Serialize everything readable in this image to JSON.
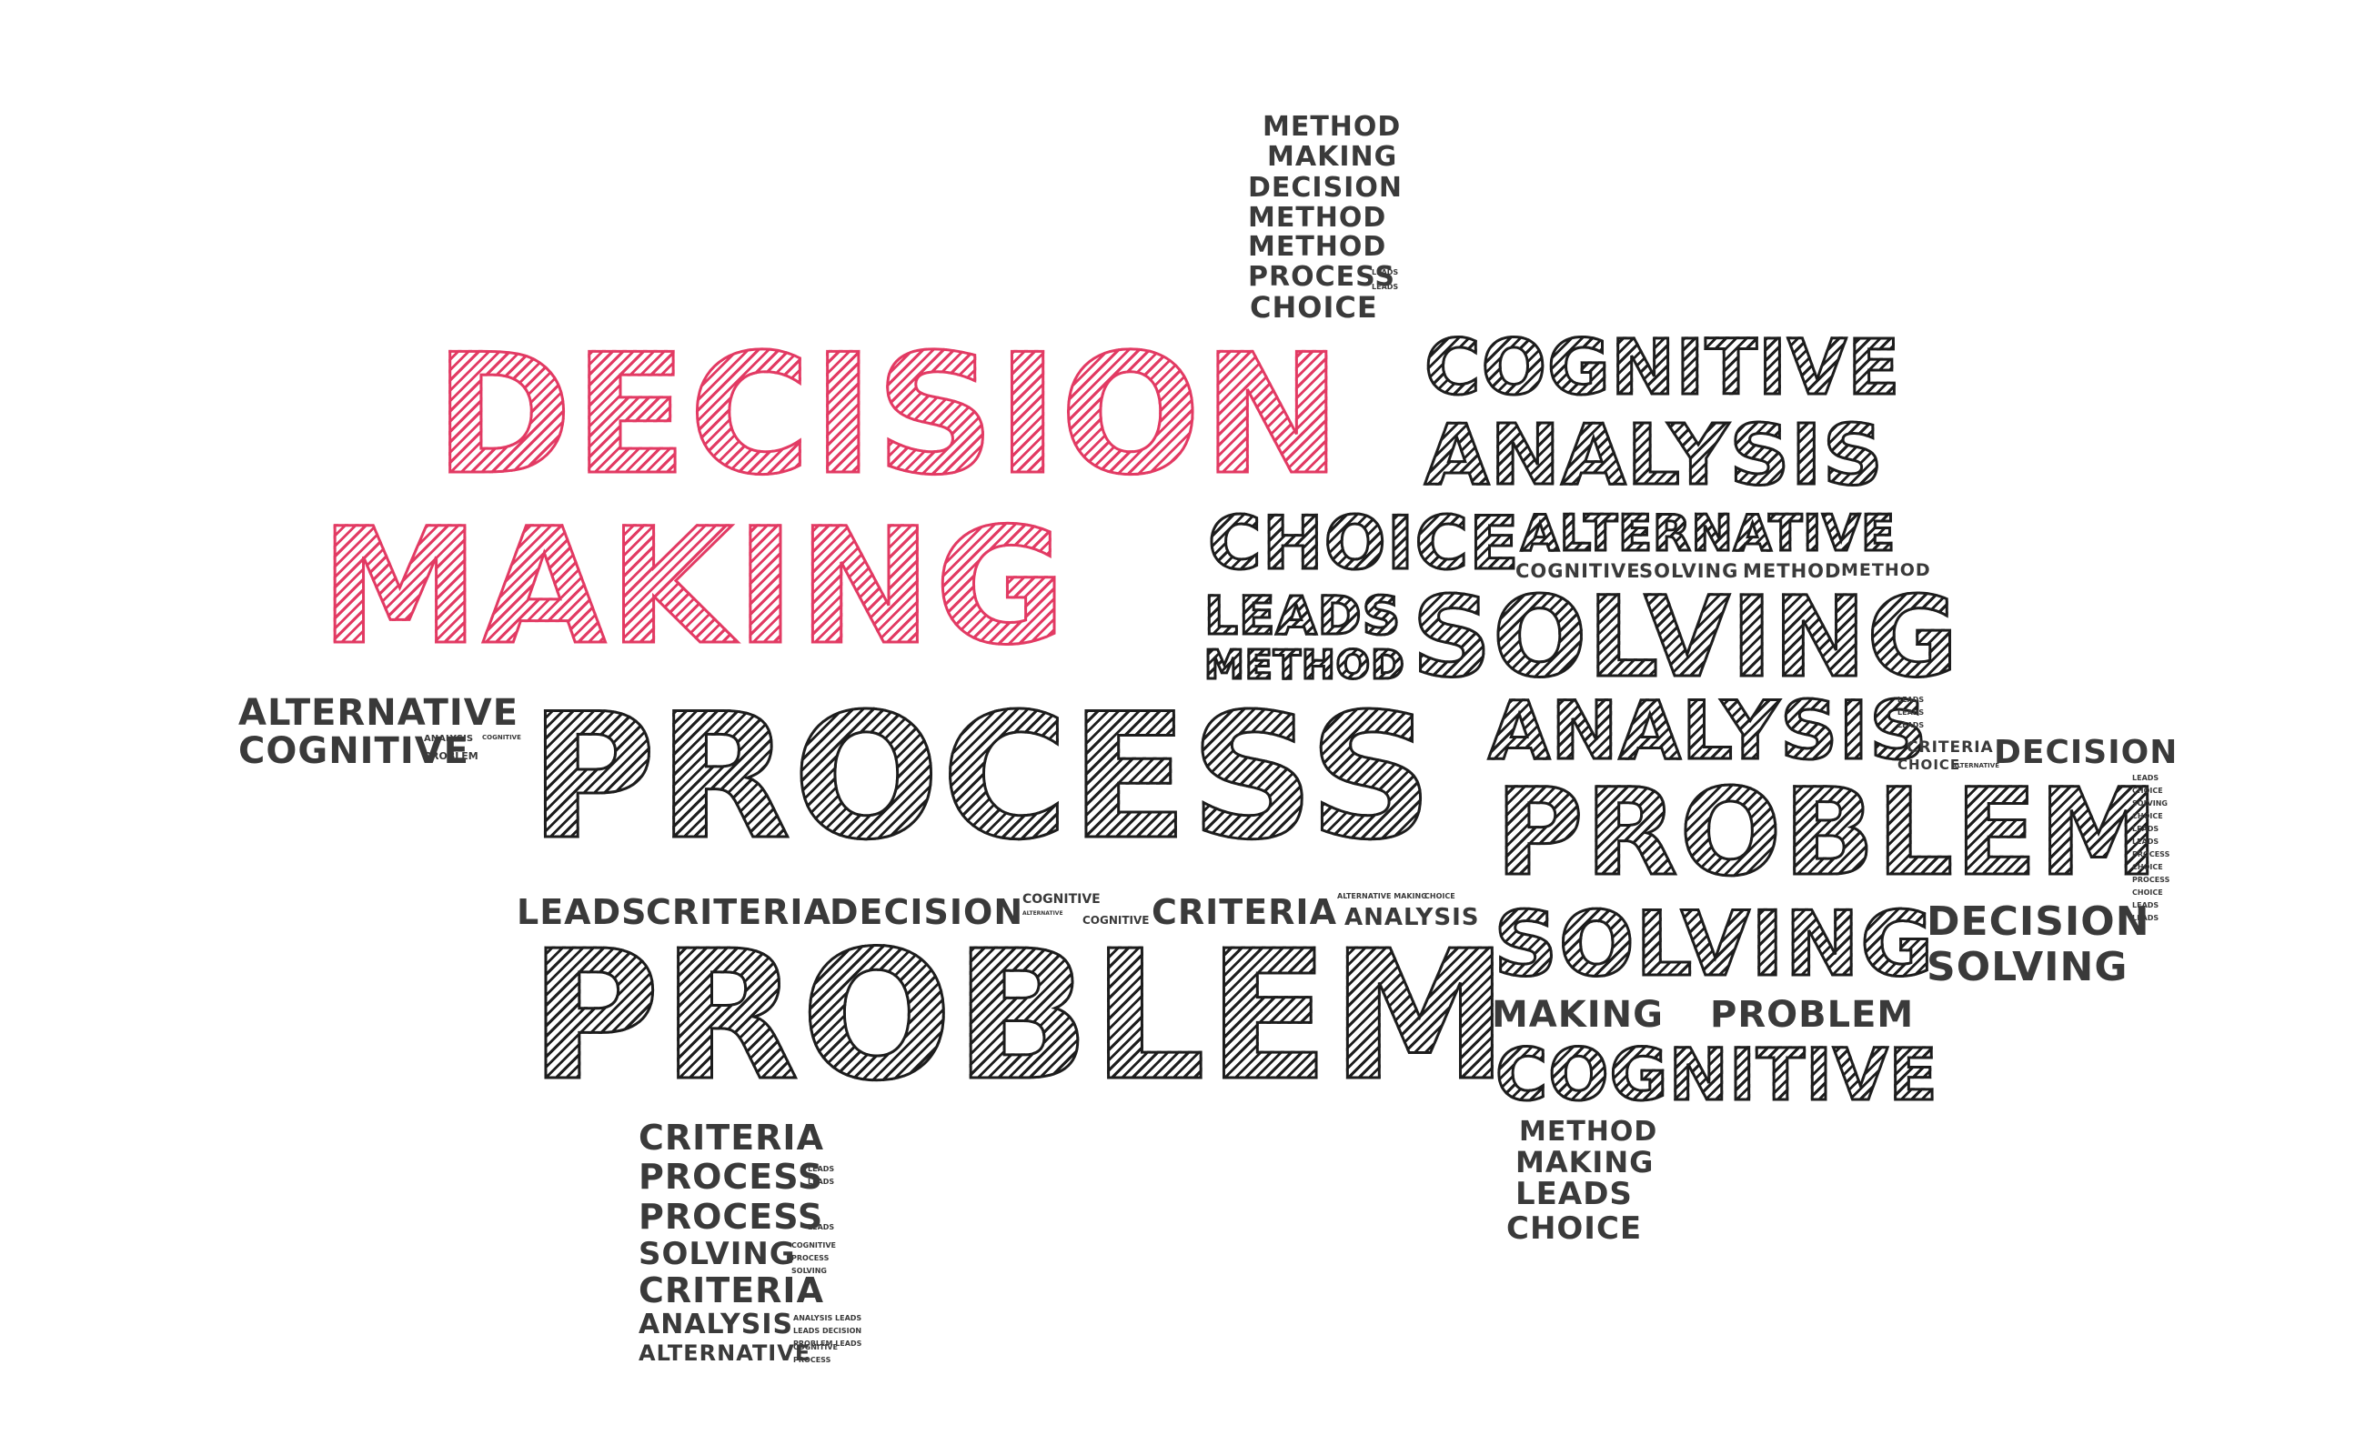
{
  "colors": {
    "accent": "#e23a63",
    "ink": "#1d1d1d",
    "background": "#ffffff"
  },
  "words": {
    "decision_main": "DECISION",
    "making_main": "MAKING",
    "process_main": "PROCESS",
    "problem_main": "PROBLEM",
    "top_col": [
      "METHOD",
      "MAKING",
      "DECISION",
      "METHOD",
      "METHOD",
      "PROCESS",
      "CHOICE"
    ],
    "top_col_tiny": [
      "LEADS",
      "LEADS"
    ],
    "cognitive_1": "COGNITIVE",
    "analysis_1": "ANALYSIS",
    "choice_1": "CHOICE",
    "alternative_1": "ALTERNATIVE",
    "cognitive_small": "COGNITIVE",
    "solving_small": "SOLVING",
    "method_small": "METHOD",
    "method_small_2": "METHOD",
    "leads_1": "LEADS",
    "method_1": "METHOD",
    "solving_1": "SOLVING",
    "alternative_left": "ALTERNATIVE",
    "cognitive_left": "COGNITIVE",
    "analysis_left_tiny": "ANALYSIS",
    "cognitive_left_tiny": "COGNITIVE",
    "problem_left_tiny": "PROBLEM",
    "analysis_2": "ANALYSIS",
    "right_tiny_col_1": [
      "LEADS",
      "LEADS",
      "LEADS"
    ],
    "criteria_right": "CRITERIA",
    "choice_right": "CHOICE",
    "alternative_right_tiny": "ALTERNATIVE",
    "decision_right": "DECISION",
    "problem_2": "PROBLEM",
    "right_tiny_col_2": [
      "LEADS",
      "CHOICE",
      "SOLVING",
      "CHOICE",
      "LEADS",
      "LEADS",
      "PROCESS",
      "CHOICE",
      "PROCESS",
      "CHOICE",
      "LEADS",
      "LEADS"
    ],
    "middle_row": [
      "LEADS",
      "CRITERIA",
      "DECISION"
    ],
    "middle_tiny_1": [
      "COGNITIVE",
      "ALTERNATIVE",
      "COGNITIVE"
    ],
    "criteria_mid": "CRITERIA",
    "middle_tiny_2": [
      "ALTERNATIVE MAKING",
      "CHOICE"
    ],
    "analysis_mid": "ANALYSIS",
    "solving_2": "SOLVING",
    "decision_2": "DECISION",
    "solving_3": "SOLVING",
    "making_2": "MAKING",
    "problem_3": "PROBLEM",
    "cognitive_2": "COGNITIVE",
    "bottom_right_col": [
      "METHOD",
      "MAKING",
      "LEADS",
      "CHOICE"
    ],
    "bottom_left_col": [
      "CRITERIA",
      "PROCESS",
      "PROCESS",
      "SOLVING",
      "CRITERIA",
      "ANALYSIS",
      "ALTERNATIVE"
    ],
    "bottom_left_tiny": [
      "LEADS",
      "LEADS",
      "LEADS",
      "COGNITIVE",
      "PROCESS",
      "SOLVING",
      "ANALYSIS LEADS",
      "LEADS DECISION",
      "PROBLEM LEADS",
      "COGNITIVE",
      "PROCESS"
    ]
  }
}
